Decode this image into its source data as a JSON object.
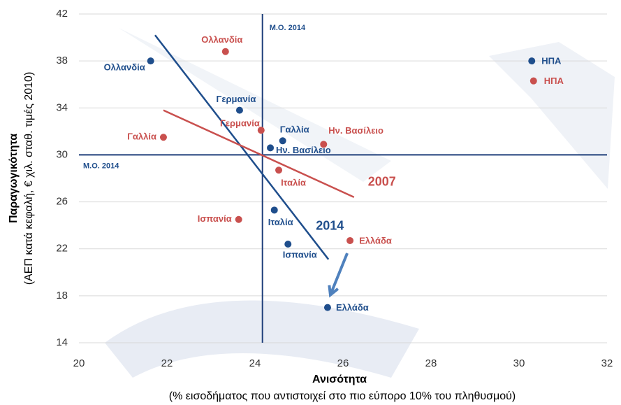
{
  "chart_data": {
    "type": "scatter",
    "xlabel": "Ανισότητα",
    "xlabel_note": "(% εισοδήματος που αντιστοιχεί στο πιο εύπορο 10% του πληθυσμού)",
    "ylabel": "Παραγωγικότητα",
    "ylabel_note": "(ΑΕΠ κατά κεφαλή, € χιλ. σταθ. τιμές 2010)",
    "xlim": [
      20,
      32
    ],
    "xticks": [
      20,
      22,
      24,
      26,
      28,
      30,
      32
    ],
    "ylim": [
      14,
      42
    ],
    "yticks": [
      14,
      18,
      22,
      26,
      30,
      34,
      38,
      42
    ],
    "grid": true,
    "mean_label": "Μ.Ο. 2014",
    "mean_x": 24.17,
    "mean_y": 30,
    "series": [
      {
        "name": "2014",
        "color": "#1f4e8c",
        "labels": [
          "Ολλανδία",
          "Γερμανία",
          "Ην. Βασίλειο",
          "Γαλλία",
          "Ιταλία",
          "Ισπανία",
          "Ελλάδα",
          "ΗΠΑ"
        ],
        "x": [
          21.63,
          23.65,
          24.35,
          24.63,
          24.44,
          24.75,
          25.65,
          30.29
        ],
        "values": [
          38.0,
          33.8,
          30.6,
          31.2,
          25.3,
          22.4,
          17.0,
          38.0
        ],
        "trend_x": [
          21.73,
          25.67
        ],
        "trend_y": [
          40.2,
          21.1
        ]
      },
      {
        "name": "2007",
        "color": "#c9504e",
        "labels": [
          "Ολλανδία",
          "Γαλλία",
          "Γερμανία",
          "Ην. Βασίλειο",
          "Ιταλία",
          "Ισπανία",
          "Ελλάδα",
          "ΗΠΑ"
        ],
        "x": [
          23.33,
          21.92,
          24.14,
          25.56,
          24.54,
          23.63,
          26.16,
          30.33
        ],
        "values": [
          38.8,
          31.5,
          32.1,
          30.9,
          28.7,
          24.5,
          22.7,
          36.3
        ],
        "trend_x": [
          21.92,
          26.25
        ],
        "trend_y": [
          33.8,
          26.4
        ]
      }
    ]
  }
}
